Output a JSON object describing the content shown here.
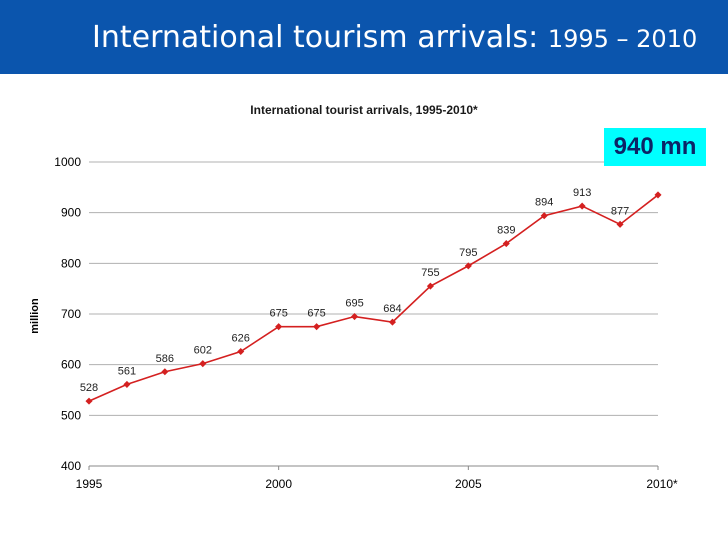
{
  "slide": {
    "title_main": "International tourism arrivals:",
    "title_years": "1995 – 2010"
  },
  "callout": {
    "text": "940 mn"
  },
  "colors": {
    "header": "#0b55ad",
    "line": "#d42020",
    "callout_bg": "#00ffff",
    "grid": "#b0b0b0"
  },
  "chart_data": {
    "type": "line",
    "title": "International tourist arrivals, 1995-2010*",
    "ylabel": "million",
    "xlabel": "",
    "ylim": [
      400,
      1000
    ],
    "yticks": [
      "400",
      "500",
      "600",
      "700",
      "800",
      "900",
      "1000"
    ],
    "xticks": [
      {
        "x": 1995,
        "label": "1995"
      },
      {
        "x": 2000,
        "label": "2000"
      },
      {
        "x": 2005,
        "label": "2005"
      },
      {
        "x": 2010,
        "label": "2010*"
      }
    ],
    "xlim": [
      1995,
      2010
    ],
    "grid": true,
    "series": [
      {
        "x": [
          1995,
          1996,
          1997,
          1998,
          1999,
          2000,
          2001,
          2002,
          2003,
          2004,
          2005,
          2006,
          2007,
          2008,
          2009,
          2010
        ],
        "values": [
          528,
          561,
          586,
          602,
          626,
          675,
          675,
          695,
          684,
          755,
          795,
          839,
          894,
          913,
          877,
          935
        ],
        "labels": [
          "528",
          "561",
          "586",
          "602",
          "626",
          "675",
          "675",
          "695",
          "684",
          "755",
          "795",
          "839",
          "894",
          "913",
          "877",
          ""
        ]
      }
    ]
  }
}
